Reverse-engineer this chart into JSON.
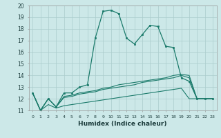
{
  "title": "",
  "xlabel": "Humidex (Indice chaleur)",
  "xlim_min": -0.5,
  "xlim_max": 23.5,
  "ylim_min": 11,
  "ylim_max": 20,
  "background_color": "#cce8e8",
  "grid_color": "#aacccc",
  "line_color": "#1a7a6a",
  "line1_x": [
    0,
    1,
    2,
    3,
    4,
    5,
    6,
    7,
    8,
    9,
    10,
    11,
    12,
    13,
    14,
    15,
    16,
    17,
    18,
    19,
    20,
    21,
    22,
    23
  ],
  "line1_y": [
    12.5,
    11.0,
    12.0,
    11.3,
    12.5,
    12.5,
    13.0,
    13.2,
    17.2,
    19.5,
    19.6,
    19.3,
    17.2,
    16.7,
    17.5,
    18.3,
    18.2,
    16.5,
    16.4,
    13.8,
    13.5,
    12.0,
    12.0,
    12.0
  ],
  "line2_x": [
    0,
    1,
    2,
    3,
    4,
    5,
    6,
    7,
    8,
    9,
    10,
    11,
    12,
    13,
    14,
    15,
    16,
    17,
    18,
    19,
    20,
    21,
    22,
    23
  ],
  "line2_y": [
    12.5,
    11.0,
    12.0,
    11.3,
    12.2,
    12.3,
    12.5,
    12.6,
    12.7,
    12.9,
    13.0,
    13.2,
    13.3,
    13.4,
    13.5,
    13.6,
    13.7,
    13.8,
    14.0,
    14.1,
    14.0,
    12.0,
    12.0,
    12.0
  ],
  "line3_x": [
    0,
    1,
    2,
    3,
    4,
    5,
    6,
    7,
    8,
    9,
    10,
    11,
    12,
    13,
    14,
    15,
    16,
    17,
    18,
    19,
    20,
    21,
    22,
    23
  ],
  "line3_y": [
    12.5,
    11.0,
    12.0,
    11.3,
    12.1,
    12.2,
    12.4,
    12.5,
    12.6,
    12.8,
    12.9,
    13.0,
    13.1,
    13.2,
    13.4,
    13.5,
    13.6,
    13.7,
    13.8,
    14.0,
    13.8,
    12.0,
    12.0,
    12.0
  ],
  "line4_x": [
    0,
    1,
    2,
    3,
    4,
    5,
    6,
    7,
    8,
    9,
    10,
    11,
    12,
    13,
    14,
    15,
    16,
    17,
    18,
    19,
    20,
    21,
    22,
    23
  ],
  "line4_y": [
    12.5,
    11.0,
    11.5,
    11.2,
    11.4,
    11.5,
    11.6,
    11.7,
    11.8,
    11.9,
    12.0,
    12.1,
    12.2,
    12.3,
    12.4,
    12.5,
    12.6,
    12.7,
    12.8,
    12.9,
    12.0,
    12.0,
    12.0,
    12.0
  ]
}
